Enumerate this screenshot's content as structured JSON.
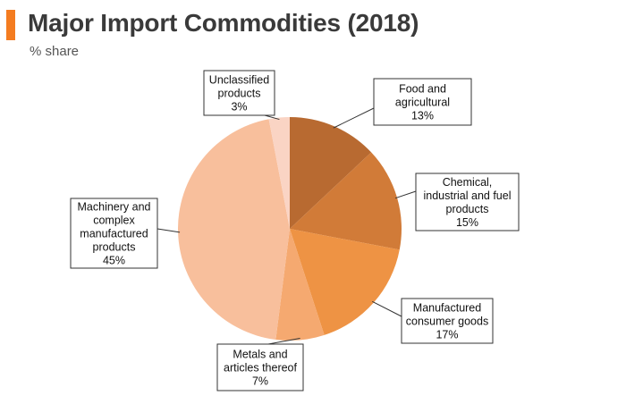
{
  "title": "Major Import Commodities (2018)",
  "subtitle": "% share",
  "chart_data": {
    "type": "pie",
    "start_angle_deg": 0,
    "direction": "clockwise",
    "slices": [
      {
        "label_lines": [
          "Food and",
          "agricultural",
          "13%"
        ],
        "value": 13,
        "color": "#b86a31"
      },
      {
        "label_lines": [
          "Chemical,",
          "industrial and fuel",
          "products",
          "15%"
        ],
        "value": 15,
        "color": "#d17b38"
      },
      {
        "label_lines": [
          "Manufactured",
          "consumer goods",
          "17%"
        ],
        "value": 17,
        "color": "#ee9344"
      },
      {
        "label_lines": [
          "Metals and",
          "articles thereof",
          "7%"
        ],
        "value": 7,
        "color": "#f5a970"
      },
      {
        "label_lines": [
          "Machinery and",
          "complex",
          "manufactured",
          "products",
          "45%"
        ],
        "value": 45,
        "color": "#f8bf9c"
      },
      {
        "label_lines": [
          "Unclassified",
          "products",
          "3%"
        ],
        "value": 3,
        "color": "#fad4c4"
      }
    ]
  }
}
